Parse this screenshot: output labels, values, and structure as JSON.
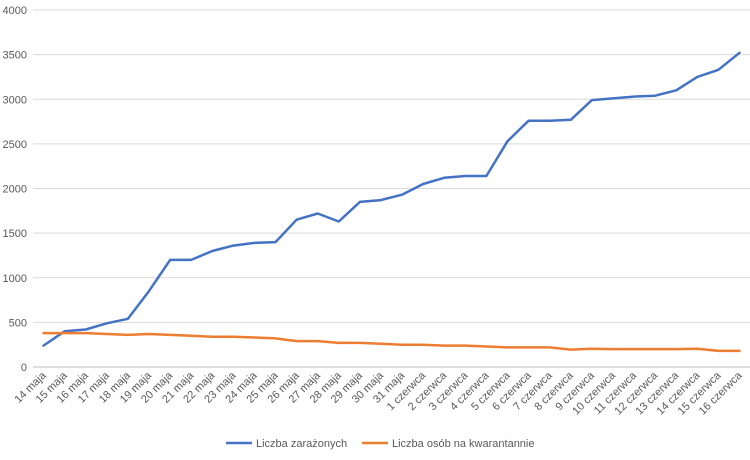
{
  "chart_data": {
    "type": "line",
    "title": "",
    "xlabel": "",
    "ylabel": "",
    "ylim": [
      0,
      4000
    ],
    "yticks": [
      "0",
      "500",
      "1000",
      "1500",
      "2000",
      "2500",
      "3000",
      "3500",
      "4000"
    ],
    "grid": true,
    "legend_position": "bottom",
    "categories": [
      "14 maja",
      "15 maja",
      "16 maja",
      "17 maja",
      "18 maja",
      "19 maja",
      "20  maja",
      "21 maja",
      "22 maja",
      "23 maja",
      "24 maja",
      "25 maja",
      "26 maja",
      "27 maja",
      "28  maja",
      "29 maja",
      "30 maja",
      "31 maja",
      "1 czerwca",
      "2 czerwca",
      "3 czerwca",
      "4 czerwca",
      "5 czerwca",
      "6 czerwca",
      "7 czerwca",
      "8 czerwca",
      "9 czerwca",
      "10 czerwca",
      "11 czerwca",
      "12 czerwca",
      "13 czerwca",
      "14 czerwca",
      "15 czerwca",
      "16 czerwca"
    ],
    "series": [
      {
        "name": "Liczba zarażonych",
        "color": "#4472C4",
        "values": [
          240,
          400,
          420,
          490,
          540,
          850,
          1200,
          1200,
          1300,
          1360,
          1390,
          1400,
          1650,
          1720,
          1630,
          1850,
          1870,
          1930,
          2050,
          2120,
          2140,
          2140,
          2530,
          2760,
          2760,
          2770,
          2990,
          3010,
          3030,
          3040,
          3100,
          3250,
          3330,
          3520
        ]
      },
      {
        "name": "Liczba osób na kwarantannie",
        "color": "#ED7D31",
        "values": [
          380,
          380,
          380,
          370,
          360,
          370,
          360,
          350,
          340,
          340,
          330,
          320,
          290,
          290,
          270,
          270,
          260,
          250,
          250,
          240,
          240,
          230,
          220,
          220,
          220,
          195,
          205,
          200,
          200,
          200,
          200,
          205,
          180,
          180
        ]
      }
    ]
  }
}
